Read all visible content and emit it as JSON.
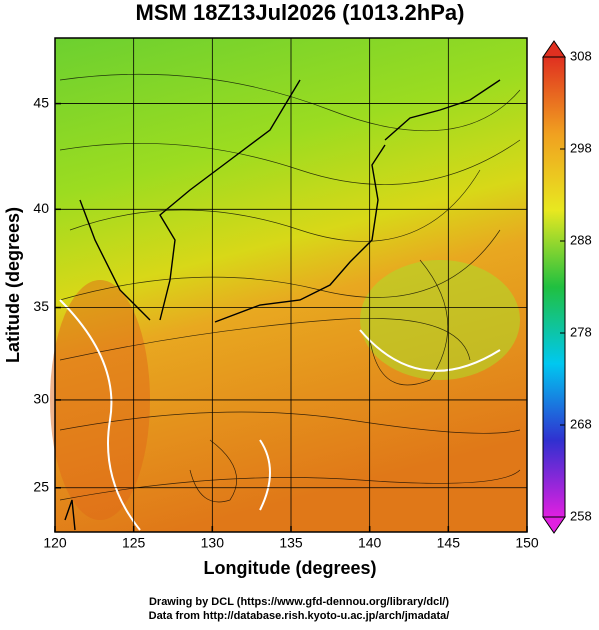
{
  "chart_data": {
    "type": "map",
    "title": "MSM 18Z13Jul2026 (1013.2hPa)",
    "xlabel": "Longitude (degrees)",
    "ylabel": "Latitude  (degrees)",
    "xlim": [
      120,
      150
    ],
    "xticks": [
      120,
      125,
      130,
      135,
      140,
      145,
      150
    ],
    "ylim": [
      22.4,
      47.9
    ],
    "yticks": [
      25,
      30,
      35,
      40,
      45
    ],
    "projection": "mercator",
    "grid": true,
    "colorbar": {
      "lim": [
        258,
        308
      ],
      "ticks": [
        258,
        268,
        278,
        288,
        298,
        308
      ],
      "colors": [
        "#e020e0",
        "#3030d0",
        "#00c8f0",
        "#20c040",
        "#e8e820",
        "#f0a020",
        "#e03020"
      ]
    },
    "footer": [
      "Drawing by DCL (https://www.gfd-dennou.org/library/dcl/)",
      "Data from http://database.rish.kyoto-u.ac.jp/arch/jmadata/"
    ]
  }
}
